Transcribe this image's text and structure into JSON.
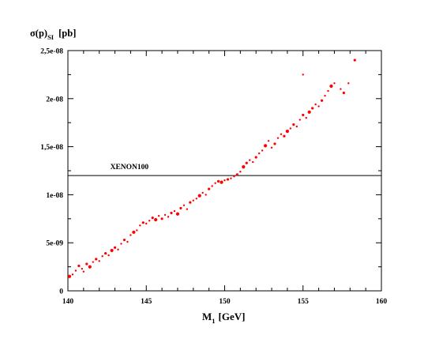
{
  "chart_data": {
    "type": "scatter",
    "title": "",
    "ylabel": {
      "main": "σ(p)",
      "sub": "SI",
      "unit": "[pb]"
    },
    "xlabel": {
      "main": "M",
      "sub": "1",
      "unit": "[GeV]"
    },
    "xlim": [
      140,
      160
    ],
    "ylim": [
      0,
      2.5e-08
    ],
    "x_ticks": [
      140,
      145,
      150,
      155,
      160
    ],
    "x_tick_labels": [
      "140",
      "145",
      "150",
      "155",
      "160"
    ],
    "y_ticks": [
      0,
      5e-09,
      1e-08,
      1.5e-08,
      2e-08,
      2.5e-08
    ],
    "y_tick_labels": [
      "0",
      "5e-09",
      "1e-08",
      "1,5e-08",
      "2e-08",
      "2,5e-08"
    ],
    "reference_line": {
      "label": "XENON100",
      "y": 1.2e-08
    },
    "marker_color": "#ff0000",
    "line_color": "#000000",
    "grid": false,
    "legend": "none",
    "series": [
      {
        "points": [
          [
            140.1,
            1.5e-09
          ],
          [
            140.3,
            1.7e-09
          ],
          [
            140.5,
            2.1e-09
          ],
          [
            140.7,
            2.6e-09
          ],
          [
            140.9,
            2.3e-09
          ],
          [
            141.0,
            2e-09
          ],
          [
            141.2,
            2.8e-09
          ],
          [
            141.4,
            2.5e-09
          ],
          [
            141.6,
            3e-09
          ],
          [
            141.8,
            3.3e-09
          ],
          [
            142.0,
            3.1e-09
          ],
          [
            142.2,
            3.6e-09
          ],
          [
            142.4,
            3.9e-09
          ],
          [
            142.6,
            3.7e-09
          ],
          [
            142.8,
            4.2e-09
          ],
          [
            143.0,
            4.5e-09
          ],
          [
            143.2,
            4.3e-09
          ],
          [
            143.4,
            4.9e-09
          ],
          [
            143.6,
            5.3e-09
          ],
          [
            143.8,
            5.1e-09
          ],
          [
            144.0,
            5.8e-09
          ],
          [
            144.2,
            6.1e-09
          ],
          [
            144.4,
            6.3e-09
          ],
          [
            144.6,
            6.8e-09
          ],
          [
            144.8,
            7.1e-09
          ],
          [
            145.0,
            7e-09
          ],
          [
            145.2,
            7.3e-09
          ],
          [
            145.4,
            7.6e-09
          ],
          [
            145.6,
            7.4e-09
          ],
          [
            145.8,
            7.8e-09
          ],
          [
            146.0,
            7.5e-09
          ],
          [
            146.2,
            7.9e-09
          ],
          [
            146.4,
            7.7e-09
          ],
          [
            146.6,
            8.1e-09
          ],
          [
            146.8,
            8.3e-09
          ],
          [
            147.0,
            8e-09
          ],
          [
            147.2,
            8.6e-09
          ],
          [
            147.4,
            8.9e-09
          ],
          [
            147.6,
            8.5e-09
          ],
          [
            147.8,
            9.2e-09
          ],
          [
            148.0,
            9.4e-09
          ],
          [
            148.2,
            9.6e-09
          ],
          [
            148.4,
            9.9e-09
          ],
          [
            148.6,
            1.02e-08
          ],
          [
            148.8,
            1e-08
          ],
          [
            149.0,
            1.06e-08
          ],
          [
            149.2,
            1.09e-08
          ],
          [
            149.4,
            1.12e-08
          ],
          [
            149.6,
            1.14e-08
          ],
          [
            149.8,
            1.13e-08
          ],
          [
            150.0,
            1.15e-08
          ],
          [
            150.2,
            1.16e-08
          ],
          [
            150.4,
            1.17e-08
          ],
          [
            150.6,
            1.19e-08
          ],
          [
            150.8,
            1.21e-08
          ],
          [
            151.0,
            1.24e-08
          ],
          [
            151.2,
            1.29e-08
          ],
          [
            151.4,
            1.33e-08
          ],
          [
            151.6,
            1.36e-08
          ],
          [
            151.8,
            1.34e-08
          ],
          [
            152.0,
            1.39e-08
          ],
          [
            152.2,
            1.43e-08
          ],
          [
            152.4,
            1.46e-08
          ],
          [
            152.6,
            1.51e-08
          ],
          [
            152.8,
            1.56e-08
          ],
          [
            153.0,
            1.49e-08
          ],
          [
            153.2,
            1.53e-08
          ],
          [
            153.4,
            1.59e-08
          ],
          [
            153.6,
            1.63e-08
          ],
          [
            153.8,
            1.61e-08
          ],
          [
            154.0,
            1.66e-08
          ],
          [
            154.2,
            1.69e-08
          ],
          [
            154.4,
            1.73e-08
          ],
          [
            154.6,
            1.71e-08
          ],
          [
            154.8,
            1.78e-08
          ],
          [
            155.0,
            1.83e-08
          ],
          [
            155.2,
            1.8e-08
          ],
          [
            155.4,
            1.86e-08
          ],
          [
            155.6,
            1.9e-08
          ],
          [
            155.8,
            1.94e-08
          ],
          [
            156.0,
            1.92e-08
          ],
          [
            156.2,
            1.98e-08
          ],
          [
            156.4,
            2.03e-08
          ],
          [
            156.6,
            2.08e-08
          ],
          [
            156.8,
            2.13e-08
          ],
          [
            157.0,
            2.16e-08
          ],
          [
            157.4,
            2.1e-08
          ],
          [
            157.6,
            2.06e-08
          ],
          [
            157.9,
            2.16e-08
          ],
          [
            155.0,
            2.25e-08
          ],
          [
            158.3,
            2.4e-08
          ]
        ]
      }
    ]
  }
}
